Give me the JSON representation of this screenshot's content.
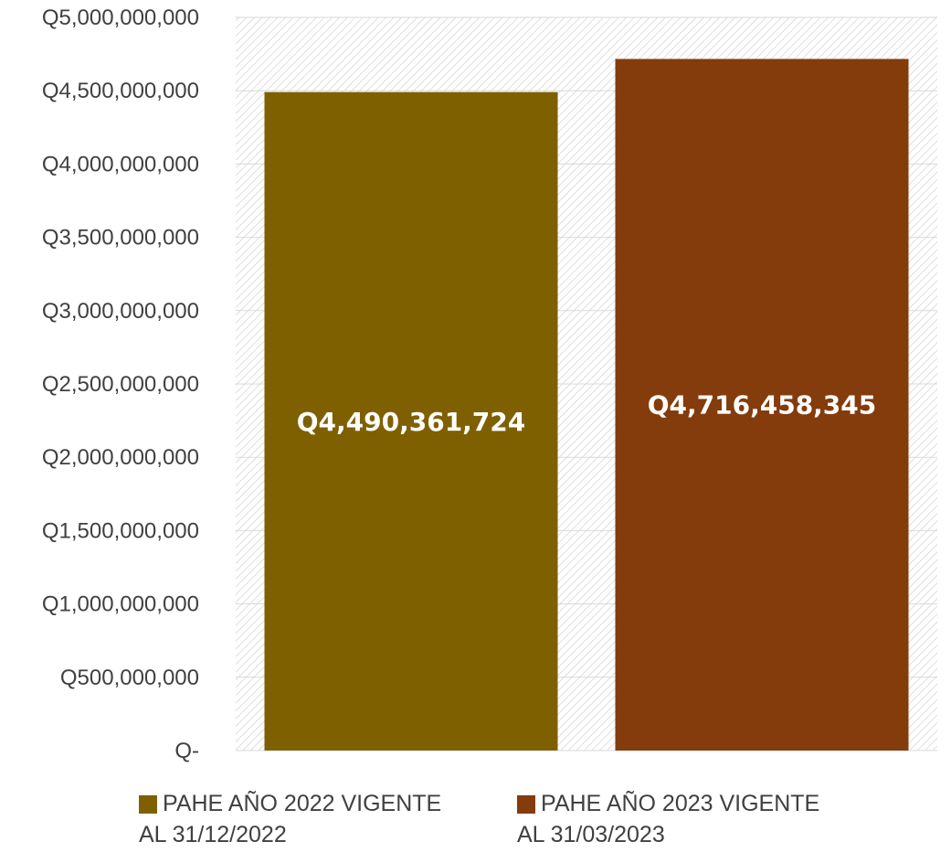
{
  "chart_data": {
    "type": "bar",
    "categories": [
      "PAHE AÑO 2022 VIGENTE AL 31/12/2022",
      "PAHE AÑO 2023 VIGENTE AL 31/03/2023"
    ],
    "values": [
      4490361724,
      4716458345
    ],
    "data_labels": [
      "Q4,490,361,724",
      "Q4,716,458,345"
    ],
    "colors": [
      "#7f6000",
      "#843c0c"
    ],
    "ylim": [
      0,
      5000000000
    ],
    "yticks": [
      0,
      500000000,
      1000000000,
      1500000000,
      2000000000,
      2500000000,
      3000000000,
      3500000000,
      4000000000,
      4500000000,
      5000000000
    ],
    "ytick_labels": [
      "Q-",
      "Q500,000,000",
      "Q1,000,000,000",
      "Q1,500,000,000",
      "Q2,000,000,000",
      "Q2,500,000,000",
      "Q3,000,000,000",
      "Q3,500,000,000",
      "Q4,000,000,000",
      "Q4,500,000,000",
      "Q5,000,000,000"
    ],
    "grid": true,
    "plot_background": "hatched",
    "legend_position": "bottom",
    "title": "",
    "xlabel": "",
    "ylabel": ""
  },
  "legend": {
    "items": [
      {
        "line1": "PAHE AÑO 2022 VIGENTE",
        "line2": "AL 31/12/2022",
        "color": "#7f6000"
      },
      {
        "line1": "PAHE AÑO 2023 VIGENTE",
        "line2": "AL 31/03/2023",
        "color": "#843c0c"
      }
    ]
  }
}
